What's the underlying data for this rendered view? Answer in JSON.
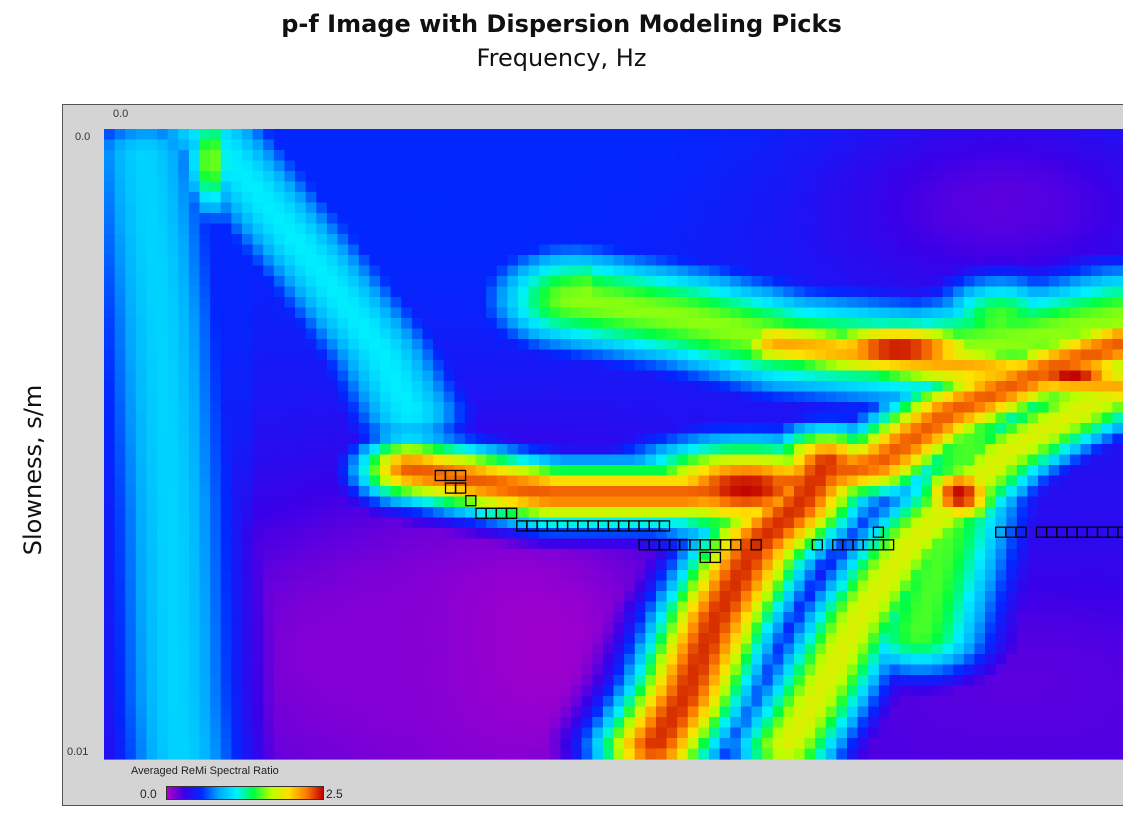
{
  "chart_data": {
    "type": "heatmap",
    "title": "p-f Image with Dispersion Modeling Picks",
    "xlabel": "Frequency, Hz",
    "ylabel": "Slowness, s/m",
    "x_tick_labels": [
      "0.0"
    ],
    "y_tick_labels": [
      "0.0",
      "0.01"
    ],
    "ylim": [
      0.0,
      0.01
    ],
    "colorbar": {
      "label": "Averaged ReMi Spectral Ratio",
      "min_label": "0.0",
      "max_label": "2.5",
      "range": [
        0.0,
        2.5
      ],
      "colors": [
        "#b000c8",
        "#3a00e8",
        "#0028ff",
        "#00a8ff",
        "#00f0ff",
        "#00ff40",
        "#b8ff00",
        "#ffe000",
        "#ff8000",
        "#c00000"
      ]
    },
    "features": [
      {
        "kind": "band",
        "value": 2.3,
        "width": 0.00038,
        "points": [
          [
            0.3,
            0.0054
          ],
          [
            0.44,
            0.0058
          ],
          [
            0.57,
            0.0058
          ],
          [
            0.68,
            0.0056
          ],
          [
            0.76,
            0.0053
          ],
          [
            0.83,
            0.0045
          ],
          [
            0.93,
            0.0038
          ],
          [
            1.0,
            0.0034
          ]
        ]
      },
      {
        "kind": "band",
        "value": 1.6,
        "width": 0.0006,
        "points": [
          [
            0.46,
            0.0027
          ],
          [
            0.57,
            0.003
          ],
          [
            0.67,
            0.0034
          ],
          [
            0.8,
            0.0036
          ],
          [
            0.92,
            0.0033
          ],
          [
            1.0,
            0.003
          ]
        ]
      },
      {
        "kind": "band",
        "value": 2.1,
        "width": 0.00033,
        "points": [
          [
            0.66,
            0.0034
          ],
          [
            0.76,
            0.0036
          ],
          [
            0.86,
            0.0038
          ],
          [
            0.94,
            0.004
          ],
          [
            1.0,
            0.0041
          ]
        ]
      },
      {
        "kind": "band",
        "value": 2.4,
        "width": 0.00042,
        "points": [
          [
            0.54,
            0.0098
          ],
          [
            0.57,
            0.009
          ],
          [
            0.6,
            0.0078
          ],
          [
            0.64,
            0.0066
          ],
          [
            0.68,
            0.006
          ],
          [
            0.71,
            0.0053
          ]
        ]
      },
      {
        "kind": "band",
        "value": 1.8,
        "width": 0.00038,
        "points": [
          [
            0.67,
            0.0098
          ],
          [
            0.7,
            0.009
          ],
          [
            0.74,
            0.0078
          ],
          [
            0.79,
            0.0066
          ],
          [
            0.83,
            0.006
          ],
          [
            0.88,
            0.0052
          ],
          [
            0.93,
            0.0047
          ],
          [
            1.0,
            0.0041
          ]
        ]
      },
      {
        "kind": "band",
        "value": 1.5,
        "width": 0.0005,
        "points": [
          [
            0.8,
            0.008
          ],
          [
            0.82,
            0.0068
          ],
          [
            0.84,
            0.0055
          ],
          [
            0.86,
            0.0042
          ],
          [
            0.88,
            0.003
          ]
        ]
      },
      {
        "kind": "band",
        "value": 1.1,
        "width": 0.00045,
        "points": [
          [
            0.1,
            0.0
          ],
          [
            0.15,
            0.001
          ],
          [
            0.21,
            0.0022
          ],
          [
            0.27,
            0.0035
          ],
          [
            0.3,
            0.0045
          ]
        ]
      },
      {
        "kind": "band",
        "value": 1.0,
        "width": 0.0005,
        "points": [
          [
            0.04,
            0.0004
          ],
          [
            0.055,
            0.003
          ],
          [
            0.065,
            0.006
          ],
          [
            0.07,
            0.009
          ],
          [
            0.075,
            0.01
          ]
        ]
      },
      {
        "kind": "blob",
        "value": 2.5,
        "f": 0.63,
        "s": 0.0057,
        "rf": 0.085,
        "rs": 0.00055
      },
      {
        "kind": "blob",
        "value": 2.5,
        "f": 0.78,
        "s": 0.0035,
        "rf": 0.075,
        "rs": 0.00035
      },
      {
        "kind": "blob",
        "value": 2.5,
        "f": 0.95,
        "s": 0.0039,
        "rf": 0.05,
        "rs": 0.0003
      },
      {
        "kind": "blob",
        "value": 2.5,
        "f": 0.84,
        "s": 0.0058,
        "rf": 0.03,
        "rs": 0.0004
      },
      {
        "kind": "blob",
        "value": 1.6,
        "f": 0.47,
        "s": 0.0026,
        "rf": 0.03,
        "rs": 0.0005
      },
      {
        "kind": "blob",
        "value": 1.6,
        "f": 0.105,
        "s": 0.0005,
        "rf": 0.018,
        "rs": 0.0007
      },
      {
        "kind": "blob",
        "value": 0.0,
        "f": 0.4,
        "s": 0.0082,
        "rf": 0.12,
        "rs": 0.0018
      },
      {
        "kind": "blob",
        "value": 0.1,
        "f": 0.25,
        "s": 0.0083,
        "rf": 0.13,
        "rs": 0.0015
      },
      {
        "kind": "blob",
        "value": 0.2,
        "f": 0.9,
        "s": 0.0088,
        "rf": 0.15,
        "rs": 0.0011
      },
      {
        "kind": "blob",
        "value": 0.2,
        "f": 0.88,
        "s": 0.0012,
        "rf": 0.14,
        "rs": 0.0012
      },
      {
        "kind": "blob",
        "value": 0.55,
        "f": 0.32,
        "s": 0.0012,
        "rf": 0.16,
        "rs": 0.0015
      }
    ],
    "picks": [
      [
        0.33,
        0.0055
      ],
      [
        0.34,
        0.0055
      ],
      [
        0.35,
        0.0055
      ],
      [
        0.34,
        0.0057
      ],
      [
        0.35,
        0.0057
      ],
      [
        0.36,
        0.0059
      ],
      [
        0.37,
        0.0061
      ],
      [
        0.38,
        0.0061
      ],
      [
        0.39,
        0.0061
      ],
      [
        0.4,
        0.0061
      ],
      [
        0.41,
        0.0063
      ],
      [
        0.42,
        0.0063
      ],
      [
        0.43,
        0.0063
      ],
      [
        0.44,
        0.0063
      ],
      [
        0.45,
        0.0063
      ],
      [
        0.46,
        0.0063
      ],
      [
        0.47,
        0.0063
      ],
      [
        0.48,
        0.0063
      ],
      [
        0.49,
        0.0063
      ],
      [
        0.5,
        0.0063
      ],
      [
        0.51,
        0.0063
      ],
      [
        0.52,
        0.0063
      ],
      [
        0.53,
        0.0063
      ],
      [
        0.54,
        0.0063
      ],
      [
        0.55,
        0.0063
      ],
      [
        0.53,
        0.0066
      ],
      [
        0.54,
        0.0066
      ],
      [
        0.55,
        0.0066
      ],
      [
        0.56,
        0.0066
      ],
      [
        0.57,
        0.0066
      ],
      [
        0.58,
        0.0066
      ],
      [
        0.59,
        0.0066
      ],
      [
        0.6,
        0.0066
      ],
      [
        0.61,
        0.0066
      ],
      [
        0.59,
        0.0068
      ],
      [
        0.6,
        0.0068
      ],
      [
        0.62,
        0.0066
      ],
      [
        0.64,
        0.0066
      ],
      [
        0.7,
        0.0066
      ],
      [
        0.72,
        0.0066
      ],
      [
        0.73,
        0.0066
      ],
      [
        0.74,
        0.0066
      ],
      [
        0.75,
        0.0066
      ],
      [
        0.76,
        0.0066
      ],
      [
        0.77,
        0.0066
      ],
      [
        0.76,
        0.0064
      ],
      [
        0.88,
        0.0064
      ],
      [
        0.89,
        0.0064
      ],
      [
        0.9,
        0.0064
      ],
      [
        0.92,
        0.0064
      ],
      [
        0.93,
        0.0064
      ],
      [
        0.94,
        0.0064
      ],
      [
        0.95,
        0.0064
      ],
      [
        0.96,
        0.0064
      ],
      [
        0.97,
        0.0064
      ],
      [
        0.98,
        0.0064
      ],
      [
        0.99,
        0.0064
      ],
      [
        1.0,
        0.0064
      ]
    ],
    "grid": false,
    "legend": "colorbar bottom-left"
  }
}
